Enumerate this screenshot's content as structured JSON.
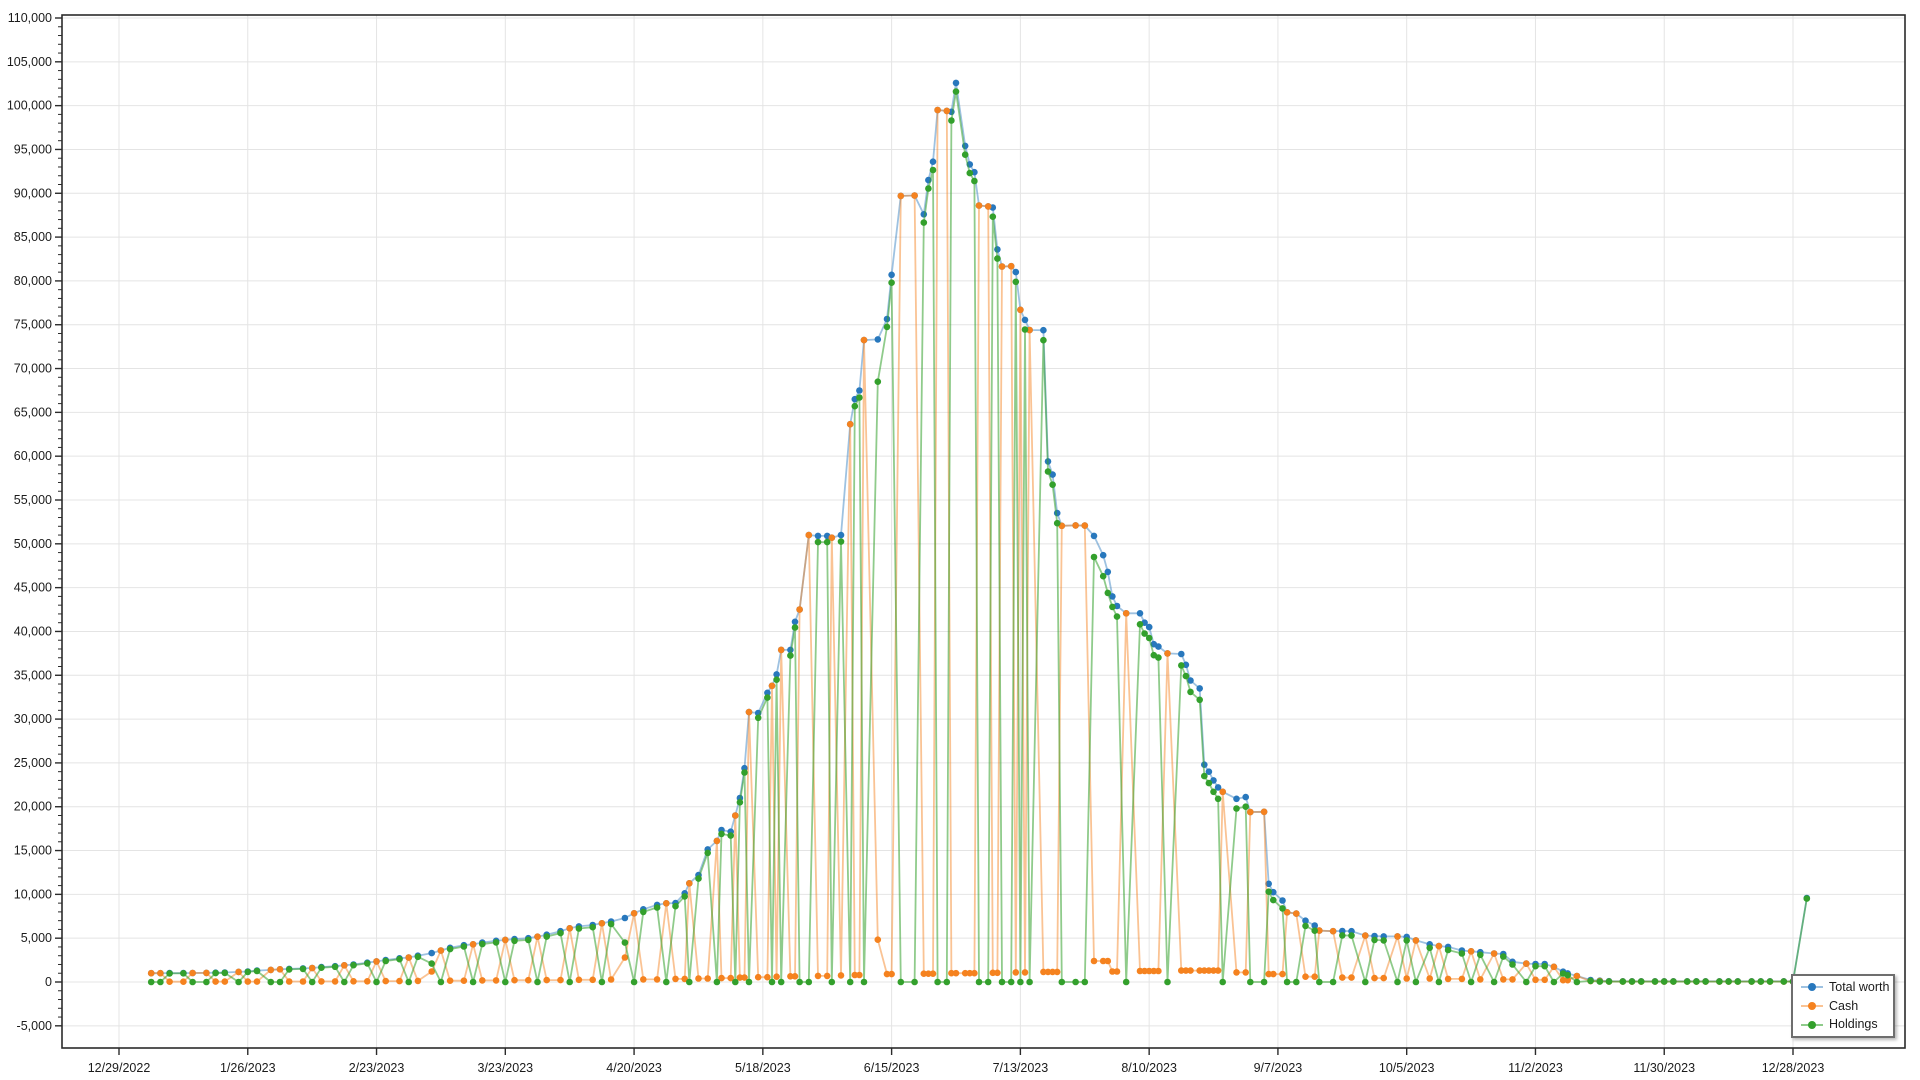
{
  "chart_data": {
    "type": "line",
    "title": "",
    "grid": true,
    "legend_position": "bottom-right",
    "colors": {
      "grid": "#e4e4e4",
      "axis": "#2b2b2b",
      "tick_text": "#1b1b1b",
      "legend_border": "#6e6e6e",
      "background": "#ffffff"
    },
    "x_axis": {
      "tick_labels": [
        "12/29/2022",
        "1/26/2023",
        "2/23/2023",
        "3/23/2023",
        "4/20/2023",
        "5/18/2023",
        "6/15/2023",
        "7/13/2023",
        "8/10/2023",
        "9/7/2023",
        "10/5/2023",
        "11/2/2023",
        "11/30/2023",
        "12/28/2023"
      ],
      "tick_interval_days": 28
    },
    "y_axis": {
      "tick_labels": [
        "-5,000",
        "0",
        "5,000",
        "10,000",
        "15,000",
        "20,000",
        "25,000",
        "30,000",
        "35,000",
        "40,000",
        "45,000",
        "50,000",
        "55,000",
        "60,000",
        "65,000",
        "70,000",
        "75,000",
        "80,000",
        "85,000",
        "90,000",
        "95,000",
        "100,000",
        "105,000",
        "110,000"
      ],
      "tick_step": 5000,
      "minor_tick_step": 1000,
      "min": -7500,
      "max": 110000
    },
    "series": [
      {
        "name": "Total worth",
        "color": "#2878bd",
        "line_color": "rgba(40,120,189,0.45)"
      },
      {
        "name": "Cash",
        "color": "#f5821f",
        "line_color": "rgba(245,130,31,0.48)"
      },
      {
        "name": "Holdings",
        "color": "#33a02c",
        "line_color": "rgba(51,160,44,0.55)"
      }
    ],
    "columns": [
      "date",
      "total_worth",
      "cash",
      "holdings"
    ],
    "points": [
      [
        "1/5/2023",
        1000,
        1000,
        0
      ],
      [
        "1/7/2023",
        1000,
        1000,
        0
      ],
      [
        "1/9/2023",
        1010,
        30,
        980
      ],
      [
        "1/12/2023",
        1020,
        30,
        990
      ],
      [
        "1/14/2023",
        1030,
        1030,
        0
      ],
      [
        "1/17/2023",
        1040,
        1040,
        0
      ],
      [
        "1/19/2023",
        1060,
        40,
        1020
      ],
      [
        "1/21/2023",
        1080,
        40,
        1040
      ],
      [
        "1/24/2023",
        1150,
        1150,
        0
      ],
      [
        "1/26/2023",
        1200,
        50,
        1150
      ],
      [
        "1/28/2023",
        1300,
        50,
        1250
      ],
      [
        "1/31/2023",
        1380,
        1380,
        0
      ],
      [
        "2/2/2023",
        1450,
        1450,
        0
      ],
      [
        "2/4/2023",
        1500,
        60,
        1440
      ],
      [
        "2/7/2023",
        1550,
        60,
        1490
      ],
      [
        "2/9/2023",
        1600,
        1600,
        0
      ],
      [
        "2/11/2023",
        1700,
        70,
        1630
      ],
      [
        "2/14/2023",
        1800,
        70,
        1730
      ],
      [
        "2/16/2023",
        1900,
        1900,
        0
      ],
      [
        "2/18/2023",
        2000,
        80,
        1920
      ],
      [
        "2/21/2023",
        2200,
        80,
        2120
      ],
      [
        "2/23/2023",
        2350,
        2350,
        0
      ],
      [
        "2/25/2023",
        2500,
        100,
        2400
      ],
      [
        "2/28/2023",
        2700,
        100,
        2600
      ],
      [
        "3/2/2023",
        2800,
        2800,
        0
      ],
      [
        "3/4/2023",
        3000,
        120,
        2880
      ],
      [
        "3/7/2023",
        3300,
        1200,
        2100
      ],
      [
        "3/9/2023",
        3600,
        3600,
        0
      ],
      [
        "3/11/2023",
        3900,
        150,
        3750
      ],
      [
        "3/14/2023",
        4200,
        150,
        4050
      ],
      [
        "3/16/2023",
        4300,
        4300,
        0
      ],
      [
        "3/18/2023",
        4500,
        180,
        4320
      ],
      [
        "3/21/2023",
        4700,
        180,
        4520
      ],
      [
        "3/23/2023",
        4800,
        4800,
        0
      ],
      [
        "3/25/2023",
        4900,
        200,
        4700
      ],
      [
        "3/28/2023",
        5000,
        200,
        4800
      ],
      [
        "3/30/2023",
        5170,
        5170,
        0
      ],
      [
        "4/1/2023",
        5400,
        220,
        5180
      ],
      [
        "4/4/2023",
        5800,
        220,
        5580
      ],
      [
        "4/6/2023",
        6130,
        6130,
        0
      ],
      [
        "4/8/2023",
        6350,
        250,
        6100
      ],
      [
        "4/11/2023",
        6500,
        250,
        6250
      ],
      [
        "4/13/2023",
        6700,
        6700,
        0
      ],
      [
        "4/15/2023",
        6900,
        280,
        6620
      ],
      [
        "4/18/2023",
        7300,
        2800,
        4500
      ],
      [
        "4/20/2023",
        7840,
        7840,
        0
      ],
      [
        "4/22/2023",
        8300,
        300,
        8000
      ],
      [
        "4/25/2023",
        8800,
        300,
        8500
      ],
      [
        "4/27/2023",
        8980,
        8980,
        0
      ],
      [
        "4/29/2023",
        9000,
        350,
        8650
      ],
      [
        "5/1/2023",
        10120,
        350,
        9770
      ],
      [
        "5/2/2023",
        11260,
        11260,
        0
      ],
      [
        "5/4/2023",
        12200,
        400,
        11800
      ],
      [
        "5/6/2023",
        15130,
        400,
        14730
      ],
      [
        "5/8/2023",
        16100,
        16100,
        0
      ],
      [
        "5/9/2023",
        17350,
        450,
        16900
      ],
      [
        "5/11/2023",
        17150,
        450,
        16700
      ],
      [
        "5/12/2023",
        19000,
        19000,
        0
      ],
      [
        "5/13/2023",
        21000,
        500,
        20500
      ],
      [
        "5/14/2023",
        24400,
        500,
        23900
      ],
      [
        "5/15/2023",
        30800,
        30800,
        0
      ],
      [
        "5/17/2023",
        30700,
        550,
        30150
      ],
      [
        "5/19/2023",
        33000,
        550,
        32450
      ],
      [
        "5/20/2023",
        33800,
        33800,
        0
      ],
      [
        "5/21/2023",
        35100,
        600,
        34500
      ],
      [
        "5/22/2023",
        37900,
        37900,
        0
      ],
      [
        "5/24/2023",
        37900,
        650,
        37250
      ],
      [
        "5/25/2023",
        41100,
        650,
        40450
      ],
      [
        "5/26/2023",
        42500,
        42500,
        0
      ],
      [
        "5/28/2023",
        51000,
        51000,
        0
      ],
      [
        "5/30/2023",
        50900,
        700,
        50200
      ],
      [
        "6/1/2023",
        50900,
        700,
        50200
      ],
      [
        "6/2/2023",
        50700,
        50700,
        0
      ],
      [
        "6/4/2023",
        51000,
        750,
        50250
      ],
      [
        "6/6/2023",
        63650,
        63650,
        0
      ],
      [
        "6/7/2023",
        66500,
        800,
        65700
      ],
      [
        "6/8/2023",
        67500,
        800,
        66700
      ],
      [
        "6/9/2023",
        73250,
        73250,
        0
      ],
      [
        "6/12/2023",
        73330,
        4830,
        68500
      ],
      [
        "6/14/2023",
        75650,
        900,
        74750
      ],
      [
        "6/15/2023",
        80700,
        900,
        79800
      ],
      [
        "6/17/2023",
        89700,
        89700,
        0
      ],
      [
        "6/20/2023",
        89750,
        89750,
        0
      ],
      [
        "6/22/2023",
        87600,
        950,
        86650
      ],
      [
        "6/23/2023",
        91500,
        950,
        90550
      ],
      [
        "6/24/2023",
        93600,
        950,
        92650
      ],
      [
        "6/25/2023",
        99500,
        99500,
        0
      ],
      [
        "6/27/2023",
        99400,
        99400,
        0
      ],
      [
        "6/28/2023",
        99300,
        1000,
        98300
      ],
      [
        "6/29/2023",
        102600,
        1000,
        101600
      ],
      [
        "7/1/2023",
        95400,
        1000,
        94400
      ],
      [
        "7/2/2023",
        93300,
        1000,
        92300
      ],
      [
        "7/3/2023",
        92400,
        1000,
        91400
      ],
      [
        "7/4/2023",
        88600,
        88600,
        0
      ],
      [
        "7/6/2023",
        88500,
        88500,
        0
      ],
      [
        "7/7/2023",
        88380,
        1050,
        87330
      ],
      [
        "7/8/2023",
        83600,
        1050,
        82550
      ],
      [
        "7/9/2023",
        81640,
        81640,
        0
      ],
      [
        "7/11/2023",
        81680,
        81680,
        0
      ],
      [
        "7/12/2023",
        81000,
        1100,
        79900
      ],
      [
        "7/13/2023",
        76700,
        76700,
        0
      ],
      [
        "7/14/2023",
        75550,
        1100,
        74450
      ],
      [
        "7/15/2023",
        74400,
        74400,
        0
      ],
      [
        "7/18/2023",
        74380,
        1150,
        73230
      ],
      [
        "7/19/2023",
        59400,
        1150,
        58250
      ],
      [
        "7/20/2023",
        57900,
        1150,
        56750
      ],
      [
        "7/21/2023",
        53500,
        1150,
        52350
      ],
      [
        "7/22/2023",
        52060,
        52060,
        0
      ],
      [
        "7/25/2023",
        52100,
        52100,
        0
      ],
      [
        "7/27/2023",
        52080,
        52080,
        0
      ],
      [
        "7/29/2023",
        50900,
        2400,
        48500
      ],
      [
        "7/31/2023",
        48700,
        2400,
        46300
      ],
      [
        "8/1/2023",
        46800,
        2400,
        44400
      ],
      [
        "8/2/2023",
        44000,
        1200,
        42800
      ],
      [
        "8/3/2023",
        42900,
        1200,
        41700
      ],
      [
        "8/5/2023",
        42070,
        42070,
        0
      ],
      [
        "8/8/2023",
        42070,
        1250,
        40820
      ],
      [
        "8/9/2023",
        41000,
        1250,
        39750
      ],
      [
        "8/10/2023",
        40500,
        1250,
        39250
      ],
      [
        "8/11/2023",
        38540,
        1250,
        37290
      ],
      [
        "8/12/2023",
        38270,
        1250,
        37020
      ],
      [
        "8/14/2023",
        37500,
        37500,
        0
      ],
      [
        "8/17/2023",
        37430,
        1300,
        36130
      ],
      [
        "8/18/2023",
        36200,
        1300,
        34900
      ],
      [
        "8/19/2023",
        34400,
        1300,
        33100
      ],
      [
        "8/21/2023",
        33500,
        1300,
        32200
      ],
      [
        "8/22/2023",
        24800,
        1300,
        23500
      ],
      [
        "8/23/2023",
        24000,
        1300,
        22700
      ],
      [
        "8/24/2023",
        23000,
        1300,
        21700
      ],
      [
        "8/25/2023",
        22200,
        1300,
        20900
      ],
      [
        "8/26/2023",
        21700,
        21700,
        0
      ],
      [
        "8/29/2023",
        20900,
        1100,
        19800
      ],
      [
        "8/31/2023",
        21100,
        1100,
        20000
      ],
      [
        "9/1/2023",
        19400,
        19400,
        0
      ],
      [
        "9/4/2023",
        19420,
        19420,
        0
      ],
      [
        "9/5/2023",
        11200,
        900,
        10300
      ],
      [
        "9/6/2023",
        10250,
        900,
        9350
      ],
      [
        "9/8/2023",
        9300,
        900,
        8400
      ],
      [
        "9/9/2023",
        7950,
        7950,
        0
      ],
      [
        "9/11/2023",
        7800,
        7800,
        0
      ],
      [
        "9/13/2023",
        7000,
        600,
        6400
      ],
      [
        "9/15/2023",
        6450,
        600,
        5850
      ],
      [
        "9/16/2023",
        5870,
        5870,
        0
      ],
      [
        "9/19/2023",
        5800,
        5800,
        0
      ],
      [
        "9/21/2023",
        5820,
        500,
        5320
      ],
      [
        "9/23/2023",
        5800,
        500,
        5300
      ],
      [
        "9/26/2023",
        5300,
        5300,
        0
      ],
      [
        "9/28/2023",
        5250,
        450,
        4800
      ],
      [
        "9/30/2023",
        5200,
        450,
        4750
      ],
      [
        "10/3/2023",
        5200,
        5200,
        0
      ],
      [
        "10/5/2023",
        5150,
        400,
        4750
      ],
      [
        "10/7/2023",
        4750,
        4750,
        0
      ],
      [
        "10/10/2023",
        4300,
        400,
        3900
      ],
      [
        "10/12/2023",
        4100,
        4100,
        0
      ],
      [
        "10/14/2023",
        4000,
        350,
        3650
      ],
      [
        "10/17/2023",
        3600,
        350,
        3250
      ],
      [
        "10/19/2023",
        3500,
        3500,
        0
      ],
      [
        "10/21/2023",
        3400,
        300,
        3100
      ],
      [
        "10/24/2023",
        3250,
        3250,
        0
      ],
      [
        "10/26/2023",
        3200,
        300,
        2900
      ],
      [
        "10/28/2023",
        2300,
        300,
        2000
      ],
      [
        "10/31/2023",
        2100,
        2100,
        0
      ],
      [
        "11/2/2023",
        2050,
        250,
        1800
      ],
      [
        "11/4/2023",
        2050,
        250,
        1800
      ],
      [
        "11/6/2023",
        1730,
        1730,
        0
      ],
      [
        "11/8/2023",
        1170,
        200,
        970
      ],
      [
        "11/9/2023",
        980,
        200,
        780
      ],
      [
        "11/11/2023",
        680,
        680,
        0
      ],
      [
        "11/14/2023",
        230,
        100,
        130
      ],
      [
        "11/16/2023",
        150,
        100,
        50
      ],
      [
        "11/18/2023",
        90,
        40,
        50
      ],
      [
        "11/21/2023",
        85,
        40,
        45
      ],
      [
        "11/23/2023",
        85,
        40,
        45
      ],
      [
        "11/25/2023",
        80,
        40,
        40
      ],
      [
        "11/28/2023",
        80,
        40,
        40
      ],
      [
        "11/30/2023",
        80,
        40,
        40
      ],
      [
        "12/2/2023",
        80,
        40,
        40
      ],
      [
        "12/5/2023",
        80,
        40,
        40
      ],
      [
        "12/7/2023",
        80,
        40,
        40
      ],
      [
        "12/9/2023",
        80,
        40,
        40
      ],
      [
        "12/12/2023",
        80,
        40,
        40
      ],
      [
        "12/14/2023",
        80,
        40,
        40
      ],
      [
        "12/16/2023",
        80,
        40,
        40
      ],
      [
        "12/19/2023",
        80,
        40,
        40
      ],
      [
        "12/21/2023",
        80,
        40,
        40
      ],
      [
        "12/23/2023",
        80,
        40,
        40
      ],
      [
        "12/26/2023",
        80,
        40,
        40
      ],
      [
        "12/28/2023",
        80,
        40,
        40
      ],
      [
        "12/31/2023",
        9580,
        60,
        9520
      ]
    ]
  },
  "legend": {
    "items": [
      {
        "label": "Total worth"
      },
      {
        "label": "Cash"
      },
      {
        "label": "Holdings"
      }
    ]
  }
}
